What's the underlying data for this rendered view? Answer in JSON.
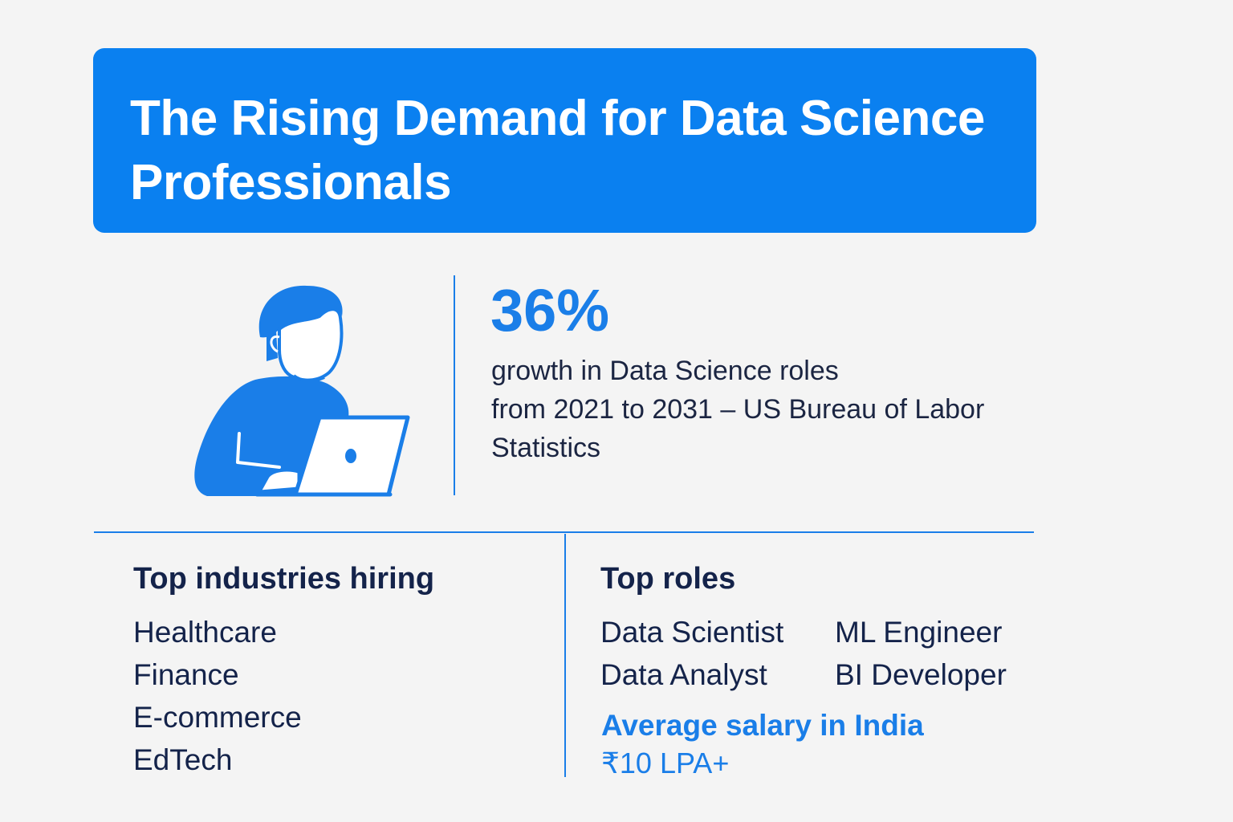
{
  "banner": {
    "title": "The Rising Demand for Data Science Professionals",
    "background_color": "#0a80f0"
  },
  "illustration": {
    "icon": "person-with-laptop-icon",
    "color": "#1a7ee8"
  },
  "stat": {
    "value": "36%",
    "lines": [
      "growth in Data Science roles",
      "from 2021 to 2031 – US Bureau of Labor",
      "Statistics"
    ]
  },
  "industries": {
    "heading": "Top industries hiring",
    "items": [
      "Healthcare",
      "Finance",
      "E-commerce",
      "EdTech"
    ]
  },
  "roles": {
    "heading": "Top roles",
    "column1": [
      "Data Scientist",
      "Data Analyst"
    ],
    "column2": [
      "ML Engineer",
      "BI Developer"
    ]
  },
  "salary": {
    "label": "Average salary in India",
    "value": "₹10 LPA+"
  },
  "colors": {
    "accent": "#1a7ee8",
    "text": "#14234a",
    "background": "#f4f4f4"
  }
}
